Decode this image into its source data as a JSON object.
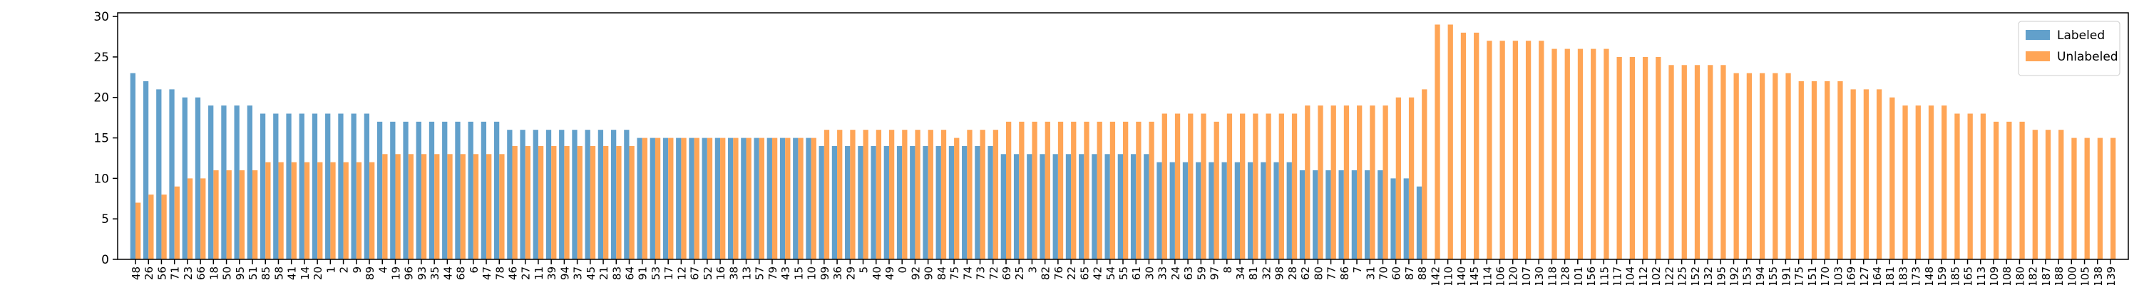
{
  "chart_data": {
    "type": "bar",
    "categories": [
      "48",
      "26",
      "56",
      "71",
      "23",
      "66",
      "18",
      "50",
      "95",
      "51",
      "85",
      "58",
      "41",
      "14",
      "20",
      "1",
      "2",
      "9",
      "89",
      "4",
      "19",
      "96",
      "93",
      "35",
      "44",
      "68",
      "6",
      "47",
      "78",
      "46",
      "27",
      "11",
      "39",
      "94",
      "37",
      "45",
      "21",
      "83",
      "64",
      "91",
      "53",
      "17",
      "12",
      "67",
      "52",
      "16",
      "38",
      "13",
      "57",
      "79",
      "43",
      "15",
      "10",
      "99",
      "36",
      "29",
      "5",
      "40",
      "49",
      "0",
      "92",
      "90",
      "84",
      "75",
      "74",
      "73",
      "72",
      "69",
      "25",
      "3",
      "82",
      "76",
      "22",
      "65",
      "42",
      "54",
      "55",
      "61",
      "30",
      "33",
      "24",
      "63",
      "59",
      "97",
      "8",
      "34",
      "81",
      "32",
      "98",
      "28",
      "62",
      "80",
      "77",
      "86",
      "7",
      "31",
      "70",
      "60",
      "87",
      "88",
      "142",
      "110",
      "140",
      "145",
      "114",
      "106",
      "120",
      "107",
      "130",
      "118",
      "128",
      "101",
      "156",
      "115",
      "117",
      "104",
      "112",
      "102",
      "122",
      "125",
      "152",
      "132",
      "195",
      "192",
      "153",
      "194",
      "155",
      "191",
      "175",
      "151",
      "170",
      "103",
      "169",
      "127",
      "164",
      "181",
      "183",
      "173",
      "148",
      "159",
      "185",
      "165",
      "113",
      "109",
      "108",
      "180",
      "182",
      "187",
      "188",
      "100",
      "105",
      "138",
      "139"
    ],
    "series": [
      {
        "name": "Labeled",
        "color": "#62a0cb",
        "values": [
          23,
          22,
          21,
          21,
          20,
          20,
          19,
          19,
          19,
          19,
          18,
          18,
          18,
          18,
          18,
          18,
          18,
          18,
          18,
          17,
          17,
          17,
          17,
          17,
          17,
          17,
          17,
          17,
          17,
          16,
          16,
          16,
          16,
          16,
          16,
          16,
          16,
          16,
          16,
          15,
          15,
          15,
          15,
          15,
          15,
          15,
          15,
          15,
          15,
          15,
          15,
          15,
          15,
          14,
          14,
          14,
          14,
          14,
          14,
          14,
          14,
          14,
          14,
          14,
          14,
          14,
          14,
          13,
          13,
          13,
          13,
          13,
          13,
          13,
          13,
          13,
          13,
          13,
          13,
          12,
          12,
          12,
          12,
          12,
          12,
          12,
          12,
          12,
          12,
          12,
          11,
          11,
          11,
          11,
          11,
          11,
          11,
          10,
          10,
          9,
          null,
          null,
          null,
          null,
          null,
          null,
          null,
          null,
          null,
          null,
          null,
          null,
          null,
          null,
          null,
          null,
          null,
          null,
          null,
          null,
          null,
          null,
          null,
          null,
          null,
          null,
          null,
          null,
          null,
          null,
          null,
          null,
          null,
          null,
          null,
          null,
          null,
          null,
          null,
          null,
          null,
          null,
          null,
          null,
          null,
          null,
          null,
          null,
          null,
          null,
          null,
          null,
          null
        ]
      },
      {
        "name": "Unlabeled",
        "color": "#ffa556",
        "values": [
          7,
          8,
          8,
          9,
          10,
          10,
          11,
          11,
          11,
          11,
          12,
          12,
          12,
          12,
          12,
          12,
          12,
          12,
          12,
          13,
          13,
          13,
          13,
          13,
          13,
          13,
          13,
          13,
          13,
          14,
          14,
          14,
          14,
          14,
          14,
          14,
          14,
          14,
          14,
          15,
          15,
          15,
          15,
          15,
          15,
          15,
          15,
          15,
          15,
          15,
          15,
          15,
          15,
          16,
          16,
          16,
          16,
          16,
          16,
          16,
          16,
          16,
          16,
          15,
          16,
          16,
          16,
          17,
          17,
          17,
          17,
          17,
          17,
          17,
          17,
          17,
          17,
          17,
          17,
          18,
          18,
          18,
          18,
          17,
          18,
          18,
          18,
          18,
          18,
          18,
          19,
          19,
          19,
          19,
          19,
          19,
          19,
          20,
          20,
          21,
          29,
          29,
          28,
          28,
          27,
          27,
          27,
          27,
          27,
          26,
          26,
          26,
          26,
          26,
          25,
          25,
          25,
          25,
          24,
          24,
          24,
          24,
          24,
          23,
          23,
          23,
          23,
          23,
          22,
          22,
          22,
          22,
          21,
          21,
          21,
          20,
          19,
          19,
          19,
          19,
          18,
          18,
          18,
          17,
          17,
          17,
          16,
          16,
          16,
          15,
          15,
          15,
          15
        ]
      }
    ],
    "ylim": [
      0,
      30.45
    ],
    "yticks": [
      0,
      5,
      10,
      15,
      20,
      25,
      30
    ],
    "grid": false,
    "legend": "upper-right"
  }
}
